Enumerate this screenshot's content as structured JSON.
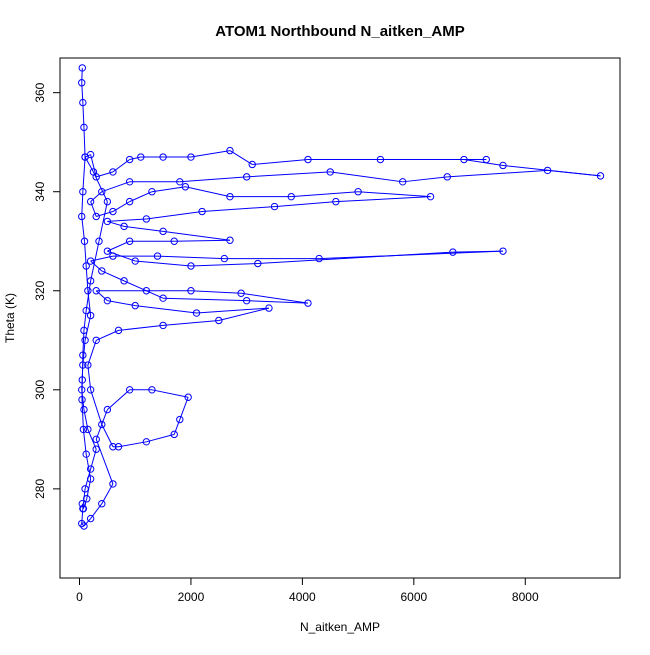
{
  "chart_data": {
    "type": "line",
    "title": "ATOM1 Northbound N_aitken_AMP",
    "xlabel": "N_aitken_AMP",
    "ylabel": "Theta (K)",
    "xlim": [
      -350,
      9700
    ],
    "ylim": [
      262,
      367
    ],
    "xticks": [
      0,
      2000,
      4000,
      6000,
      8000
    ],
    "yticks": [
      280,
      300,
      320,
      340,
      360
    ],
    "grid": false,
    "series_color": "#0000ff",
    "marker": "open-circle",
    "points": [
      [
        50,
        365
      ],
      [
        40,
        362
      ],
      [
        60,
        358
      ],
      [
        80,
        353
      ],
      [
        100,
        347
      ],
      [
        60,
        340
      ],
      [
        40,
        335
      ],
      [
        90,
        330
      ],
      [
        120,
        325
      ],
      [
        150,
        320
      ],
      [
        200,
        315
      ],
      [
        100,
        310
      ],
      [
        60,
        305
      ],
      [
        40,
        300
      ],
      [
        80,
        296
      ],
      [
        150,
        292
      ],
      [
        300,
        288
      ],
      [
        200,
        284
      ],
      [
        100,
        280
      ],
      [
        60,
        276
      ],
      [
        40,
        273
      ],
      [
        80,
        272.5
      ],
      [
        200,
        274
      ],
      [
        400,
        277
      ],
      [
        600,
        281
      ],
      [
        300,
        290
      ],
      [
        500,
        296
      ],
      [
        900,
        300
      ],
      [
        1300,
        300
      ],
      [
        1950,
        298.5
      ],
      [
        1800,
        294
      ],
      [
        1700,
        291
      ],
      [
        1200,
        289.5
      ],
      [
        700,
        288.5
      ],
      [
        600,
        288.5
      ],
      [
        400,
        293
      ],
      [
        200,
        300
      ],
      [
        150,
        305
      ],
      [
        300,
        310
      ],
      [
        700,
        312
      ],
      [
        1500,
        313
      ],
      [
        2500,
        314
      ],
      [
        3400,
        316.5
      ],
      [
        2100,
        315.5
      ],
      [
        1000,
        317
      ],
      [
        500,
        318
      ],
      [
        300,
        320
      ],
      [
        1200,
        320
      ],
      [
        2000,
        320
      ],
      [
        2900,
        319.5
      ],
      [
        4100,
        317.5
      ],
      [
        3000,
        318
      ],
      [
        1500,
        318.5
      ],
      [
        800,
        322
      ],
      [
        400,
        324
      ],
      [
        200,
        326
      ],
      [
        600,
        327
      ],
      [
        1400,
        327
      ],
      [
        2600,
        326.5
      ],
      [
        4300,
        326.5
      ],
      [
        7600,
        328
      ],
      [
        6700,
        327.8
      ],
      [
        3200,
        325.5
      ],
      [
        2000,
        325
      ],
      [
        1000,
        326
      ],
      [
        500,
        328
      ],
      [
        900,
        330
      ],
      [
        1700,
        330
      ],
      [
        2700,
        330.2
      ],
      [
        1500,
        332
      ],
      [
        800,
        333
      ],
      [
        500,
        334
      ],
      [
        1200,
        334.5
      ],
      [
        2200,
        336
      ],
      [
        3500,
        337
      ],
      [
        4600,
        338
      ],
      [
        6300,
        339
      ],
      [
        5000,
        340
      ],
      [
        3800,
        339
      ],
      [
        2700,
        339
      ],
      [
        1900,
        341
      ],
      [
        1300,
        340
      ],
      [
        900,
        338
      ],
      [
        600,
        336
      ],
      [
        300,
        335
      ],
      [
        200,
        338
      ],
      [
        400,
        340
      ],
      [
        900,
        342
      ],
      [
        1800,
        342
      ],
      [
        3000,
        343
      ],
      [
        4500,
        344
      ],
      [
        5800,
        342
      ],
      [
        6600,
        343
      ],
      [
        8400,
        344.3
      ],
      [
        9350,
        343.2
      ],
      [
        7600,
        345.3
      ],
      [
        6900,
        346.5
      ],
      [
        7300,
        346.5
      ],
      [
        5400,
        346.5
      ],
      [
        4100,
        346.5
      ],
      [
        3100,
        345.5
      ],
      [
        2700,
        348.3
      ],
      [
        2000,
        347
      ],
      [
        1500,
        347
      ],
      [
        1100,
        347
      ],
      [
        900,
        346.5
      ],
      [
        600,
        344
      ],
      [
        300,
        343
      ],
      [
        200,
        347.5
      ],
      [
        100,
        347
      ],
      [
        250,
        344
      ],
      [
        500,
        338
      ],
      [
        350,
        330
      ],
      [
        200,
        322
      ],
      [
        120,
        316
      ],
      [
        80,
        312
      ],
      [
        60,
        307
      ],
      [
        50,
        302
      ],
      [
        45,
        298
      ],
      [
        70,
        292
      ],
      [
        120,
        287
      ],
      [
        200,
        282
      ],
      [
        130,
        278
      ],
      [
        70,
        276
      ],
      [
        50,
        277
      ]
    ]
  }
}
